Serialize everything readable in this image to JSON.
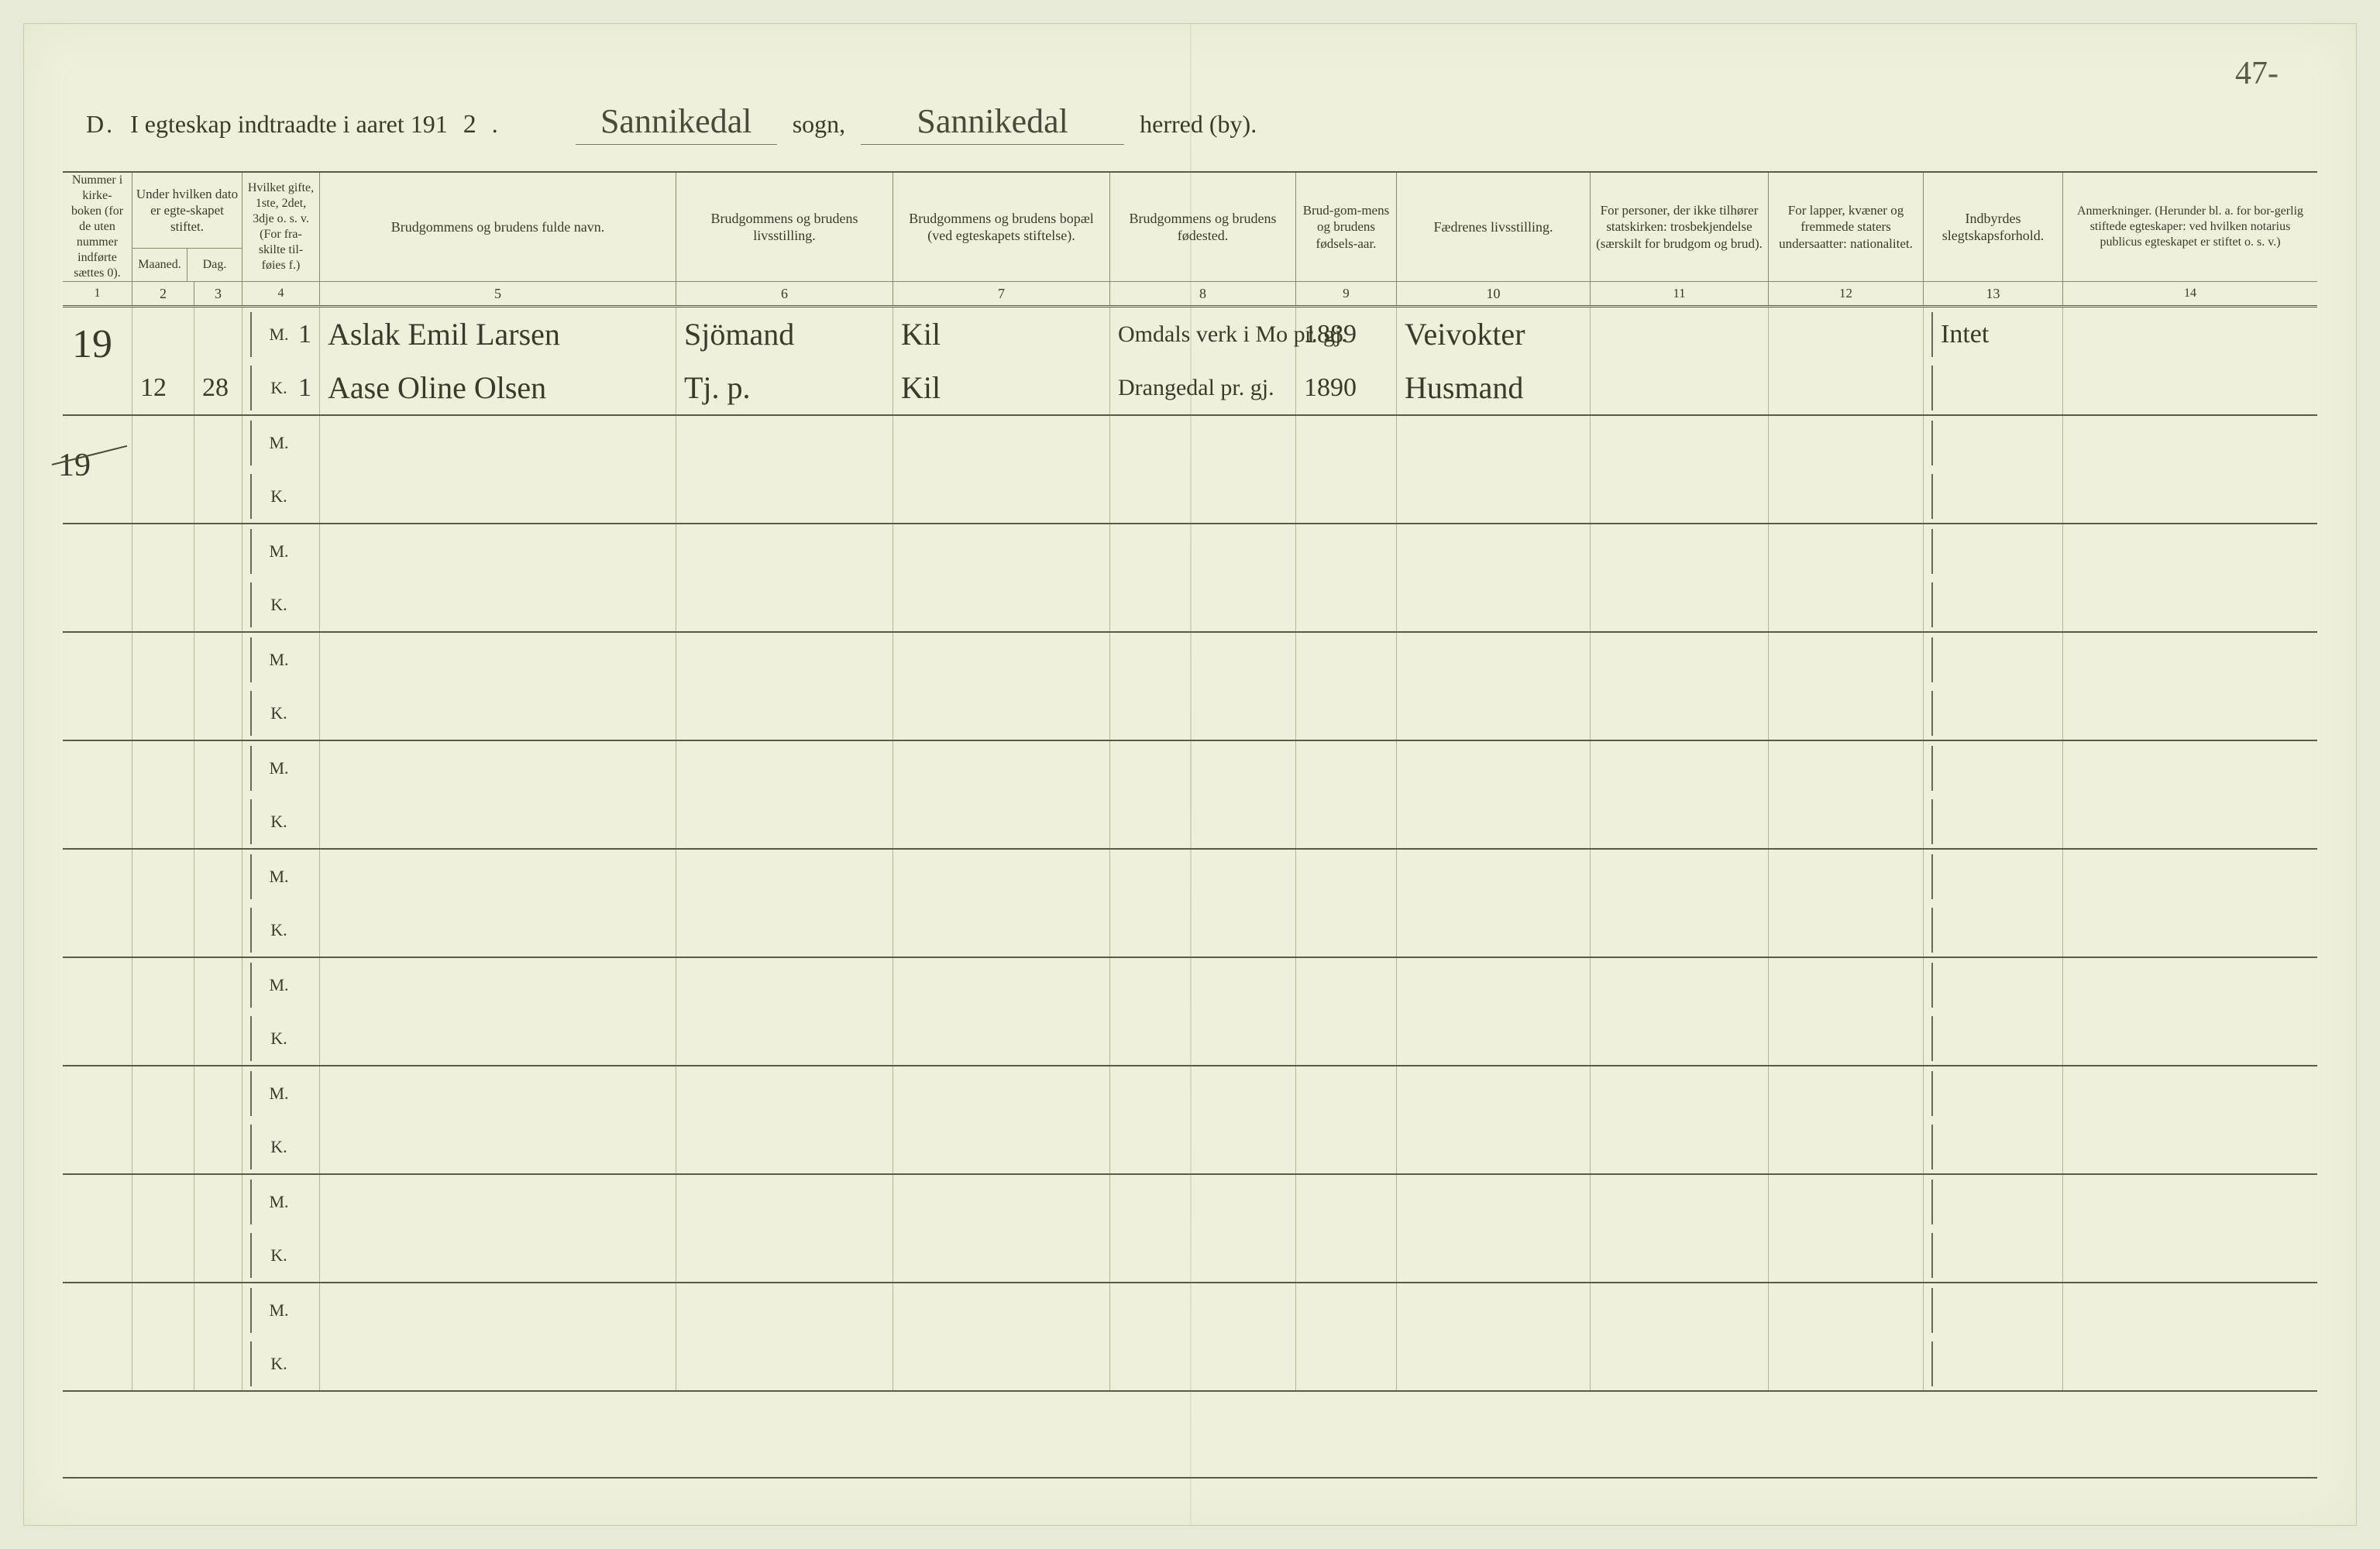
{
  "page_number_corner": "47-",
  "title": {
    "prefix": "D.",
    "text": "I egteskap indtraadte i aaret 191",
    "year_suffix": "2",
    "sogn_value": "Sannikedal",
    "sogn_label": "sogn,",
    "herred_value": "Sannikedal",
    "herred_label": "herred (by)."
  },
  "columns": {
    "c1": "Nummer i kirke-boken (for de uten nummer indførte sættes 0).",
    "c23_top": "Under hvilken dato er egte-skapet stiftet.",
    "c2": "Maaned.",
    "c3": "Dag.",
    "c4": "Hvilket gifte, 1ste, 2det, 3dje o. s. v. (For fra-skilte til-føies f.)",
    "c5": "Brudgommens og brudens fulde navn.",
    "c6": "Brudgommens og brudens livsstilling.",
    "c7": "Brudgommens og brudens bopæl (ved egteskapets stiftelse).",
    "c8": "Brudgommens og brudens fødested.",
    "c9": "Brud-gom-mens og brudens fødsels-aar.",
    "c10": "Fædrenes livsstilling.",
    "c11": "For personer, der ikke tilhører statskirken: trosbekjendelse (særskilt for brudgom og brud).",
    "c12": "For lapper, kvæner og fremmede staters undersaatter: nationalitet.",
    "c13": "Indbyrdes slegtskapsforhold.",
    "c14": "Anmerkninger. (Herunder bl. a. for bor-gerlig stiftede egteskaper: ved hvilken notarius publicus egteskapet er stiftet o. s. v.)"
  },
  "col_numbers": [
    "1",
    "2",
    "3",
    "4",
    "5",
    "6",
    "7",
    "8",
    "9",
    "10",
    "11",
    "12",
    "13",
    "14"
  ],
  "mk": {
    "m": "M.",
    "k": "K."
  },
  "records": [
    {
      "num": "19",
      "month": "12",
      "day": "28",
      "m": {
        "gifte": "1",
        "name": "Aslak Emil Larsen",
        "stilling": "Sjömand",
        "bopael": "Kil",
        "fodested": "Omdals verk i Mo pr. gj.",
        "aar": "1889",
        "faedre": "Veivokter",
        "slegt": "Intet"
      },
      "k": {
        "gifte": "1",
        "name": "Aase Oline Olsen",
        "stilling": "Tj. p.",
        "bopael": "Kil",
        "fodested": "Drangedal pr. gj.",
        "aar": "1890",
        "faedre": "Husmand",
        "slegt": ""
      }
    },
    {
      "struck_num": "19"
    },
    {},
    {},
    {},
    {},
    {},
    {},
    {},
    {}
  ],
  "colors": {
    "paper": "#eef0dc",
    "bg": "#e8ead8",
    "line_dark": "#5a5a4a",
    "line_light": "#b5b598",
    "ink": "#3a3a2a"
  }
}
